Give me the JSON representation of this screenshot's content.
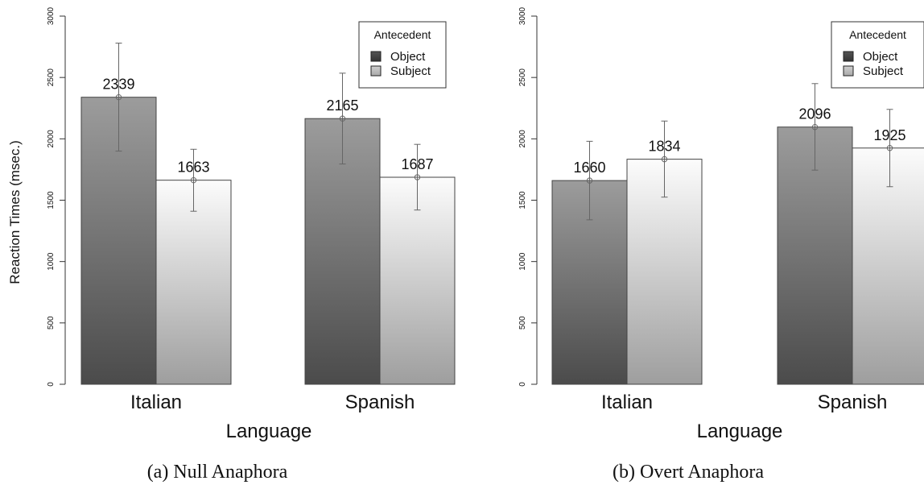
{
  "chart_data": [
    {
      "type": "bar",
      "caption": "(a) Null Anaphora",
      "xlabel": "Language",
      "ylabel": "Reaction Times (msec.)",
      "ylim": [
        0,
        3000
      ],
      "yticks": [
        "0",
        "500",
        "1000",
        "1500",
        "2000",
        "2500",
        "3000"
      ],
      "categories": [
        "Italian",
        "Spanish"
      ],
      "legend": {
        "title": "Antecedent",
        "position": "top-right"
      },
      "series": [
        {
          "name": "Object",
          "values": [
            2339,
            2165
          ],
          "err_low": [
            1900,
            1795
          ],
          "err_high": [
            2780,
            2535
          ],
          "labels": [
            "2339",
            "2165"
          ]
        },
        {
          "name": "Subject",
          "values": [
            1663,
            1687
          ],
          "err_low": [
            1410,
            1420
          ],
          "err_high": [
            1915,
            1955
          ],
          "labels": [
            "1663",
            "1687"
          ]
        }
      ]
    },
    {
      "type": "bar",
      "caption": "(b) Overt Anaphora",
      "xlabel": "Language",
      "ylabel": "",
      "ylim": [
        0,
        3000
      ],
      "yticks": [
        "0",
        "500",
        "1000",
        "1500",
        "2000",
        "2500",
        "3000"
      ],
      "categories": [
        "Italian",
        "Spanish"
      ],
      "legend": {
        "title": "Antecedent",
        "position": "top-right"
      },
      "series": [
        {
          "name": "Object",
          "values": [
            1660,
            2096
          ],
          "err_low": [
            1340,
            1745
          ],
          "err_high": [
            1980,
            2450
          ],
          "labels": [
            "1660",
            "2096"
          ]
        },
        {
          "name": "Subject",
          "values": [
            1834,
            1925
          ],
          "err_low": [
            1525,
            1610
          ],
          "err_high": [
            2145,
            2240
          ],
          "labels": [
            "1834",
            "1925"
          ]
        }
      ]
    }
  ]
}
